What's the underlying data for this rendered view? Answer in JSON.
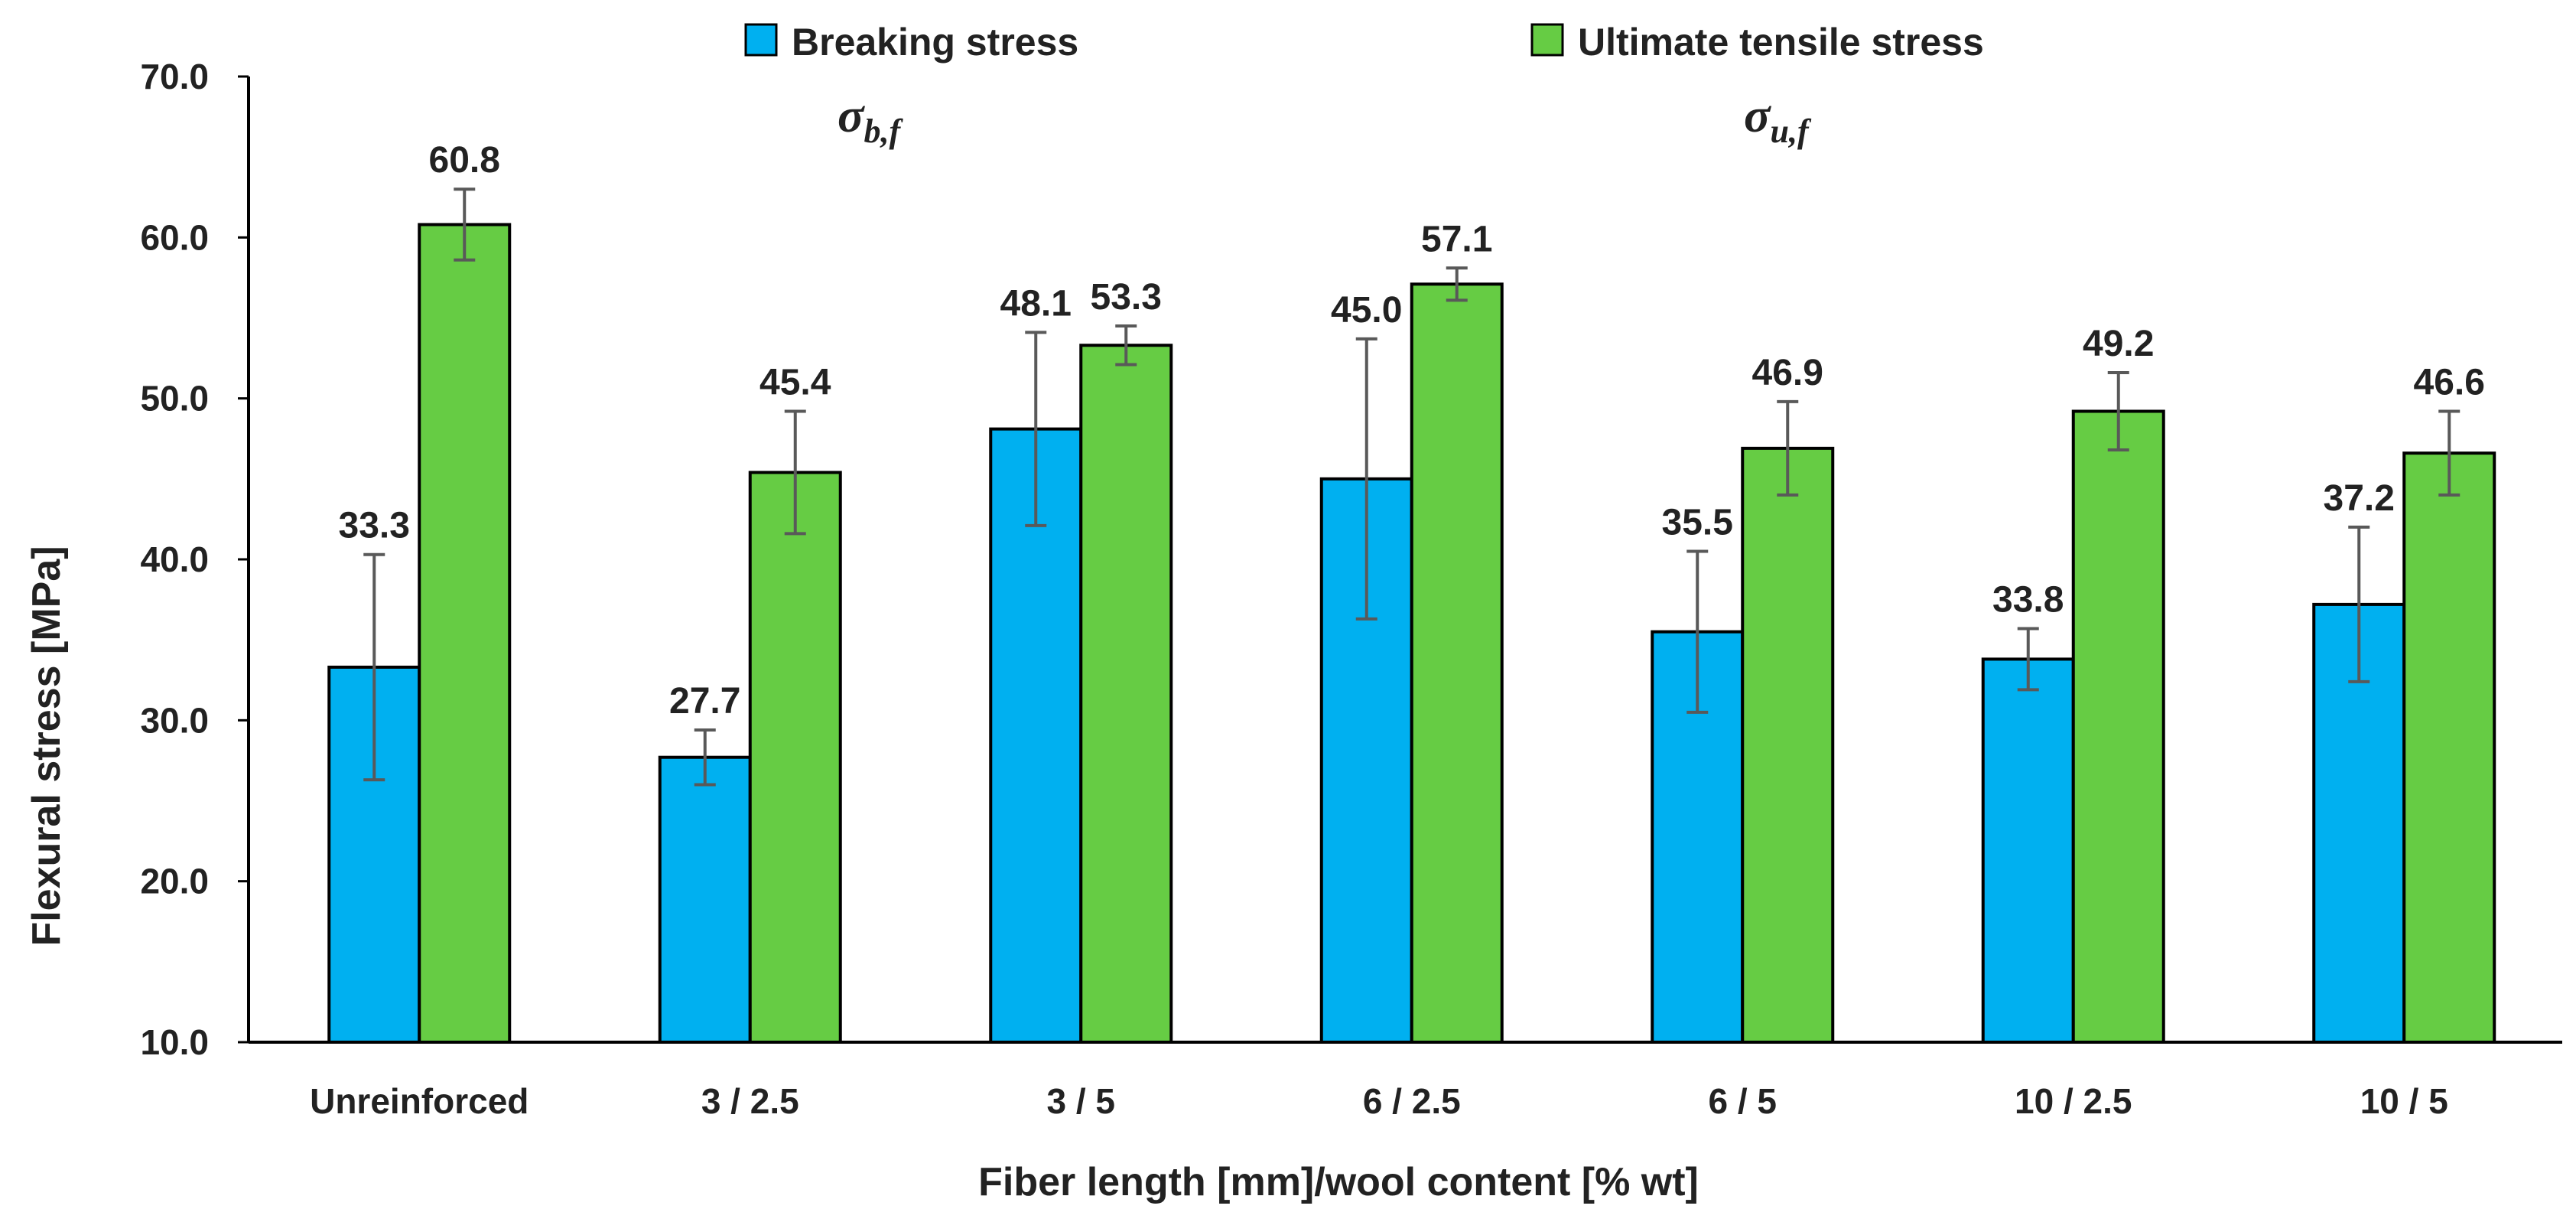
{
  "chart_data": {
    "type": "bar",
    "title": "",
    "xlabel": "Fiber length [mm]/wool content [% wt]",
    "ylabel": "Flexural stress [MPa]",
    "ylim": [
      10,
      70
    ],
    "yticks": [
      10,
      20,
      30,
      40,
      50,
      60,
      70
    ],
    "ytick_labels": [
      "10.0",
      "20.0",
      "30.0",
      "40.0",
      "50.0",
      "60.0",
      "70.0"
    ],
    "grid": false,
    "legend_position": "top",
    "categories": [
      "Unreinforced",
      "3 / 2.5",
      "3 / 5",
      "6 / 2.5",
      "6 / 5",
      "10 / 2.5",
      "10 / 5"
    ],
    "series": [
      {
        "name": "Breaking stress",
        "symbol": "σ",
        "subscript": "b,f",
        "color": "#00B0F0",
        "values": [
          33.3,
          27.7,
          48.1,
          45.0,
          35.5,
          33.8,
          37.2
        ],
        "labels": [
          "33.3",
          "27.7",
          "48.1",
          "45.0",
          "35.5",
          "33.8",
          "37.2"
        ],
        "error": [
          7.0,
          1.7,
          6.0,
          8.7,
          5.0,
          1.9,
          4.8
        ]
      },
      {
        "name": "Ultimate tensile stress",
        "symbol": "σ",
        "subscript": "u,f",
        "color": "#66CC44",
        "values": [
          60.8,
          45.4,
          53.3,
          57.1,
          46.9,
          49.2,
          46.6
        ],
        "labels": [
          "60.8",
          "45.4",
          "53.3",
          "57.1",
          "46.9",
          "49.2",
          "46.6"
        ],
        "error": [
          2.2,
          3.8,
          1.2,
          1.0,
          2.9,
          2.4,
          2.6
        ]
      }
    ]
  }
}
